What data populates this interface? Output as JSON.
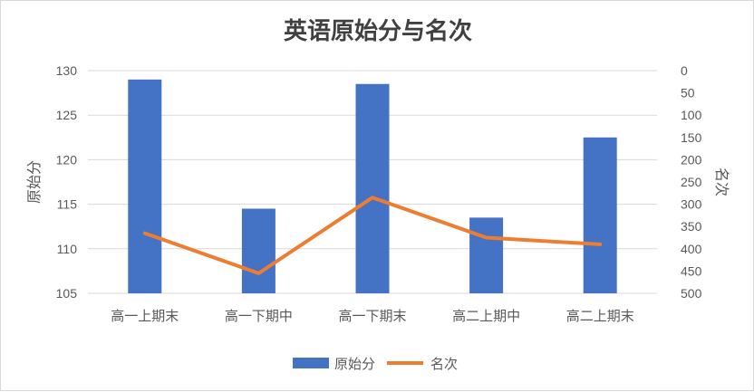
{
  "chart_data": {
    "type": "bar",
    "title": "英语原始分与名次",
    "categories": [
      "高一上期末",
      "高一下期中",
      "高一下期末",
      "高二上期中",
      "高二上期末"
    ],
    "series": [
      {
        "name": "原始分",
        "type": "bar",
        "axis": "left",
        "color": "#4472c4",
        "values": [
          129,
          114.5,
          128.5,
          113.5,
          122.5
        ]
      },
      {
        "name": "名次",
        "type": "line",
        "axis": "right",
        "color": "#ed7d31",
        "values": [
          365,
          455,
          285,
          375,
          390
        ]
      }
    ],
    "ylabel": "原始分",
    "ylim": [
      105,
      130
    ],
    "yticks": [
      105,
      110,
      115,
      120,
      125,
      130
    ],
    "y2label": "名次",
    "y2lim": [
      0,
      500
    ],
    "y2_reversed": true,
    "y2ticks": [
      0,
      50,
      100,
      150,
      200,
      250,
      300,
      350,
      400,
      450,
      500
    ],
    "grid": true,
    "legend_position": "bottom"
  }
}
